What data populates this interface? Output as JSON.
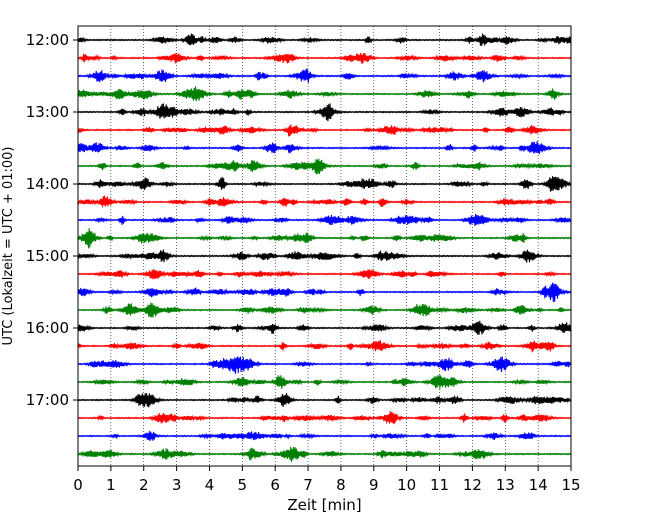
{
  "chart_data": {
    "type": "line",
    "title": "",
    "xlabel": "Zeit  [min]",
    "ylabel": "UTC (Lokalzeit = UTC + 01:00)",
    "xlim": [
      0,
      15
    ],
    "x_ticks": [
      0,
      1,
      2,
      3,
      4,
      5,
      6,
      7,
      8,
      9,
      10,
      11,
      12,
      13,
      14,
      15
    ],
    "y_ticks": [
      "12:00",
      "13:00",
      "14:00",
      "15:00",
      "16:00",
      "17:00"
    ],
    "x_grid": true,
    "trace_interval_min": 15,
    "trace_colors": [
      "#000000",
      "#ff0000",
      "#0000ff",
      "#008000"
    ],
    "traces": [
      {
        "start": "12:00"
      },
      {
        "start": "12:15"
      },
      {
        "start": "12:30"
      },
      {
        "start": "12:45"
      },
      {
        "start": "13:00"
      },
      {
        "start": "13:15"
      },
      {
        "start": "13:30"
      },
      {
        "start": "13:45"
      },
      {
        "start": "14:00"
      },
      {
        "start": "14:15"
      },
      {
        "start": "14:30"
      },
      {
        "start": "14:45"
      },
      {
        "start": "15:00"
      },
      {
        "start": "15:15"
      },
      {
        "start": "15:30"
      },
      {
        "start": "15:45"
      },
      {
        "start": "16:00"
      },
      {
        "start": "16:15"
      },
      {
        "start": "16:30"
      },
      {
        "start": "16:45"
      },
      {
        "start": "17:00"
      },
      {
        "start": "17:15"
      },
      {
        "start": "17:30"
      },
      {
        "start": "17:45"
      }
    ]
  }
}
